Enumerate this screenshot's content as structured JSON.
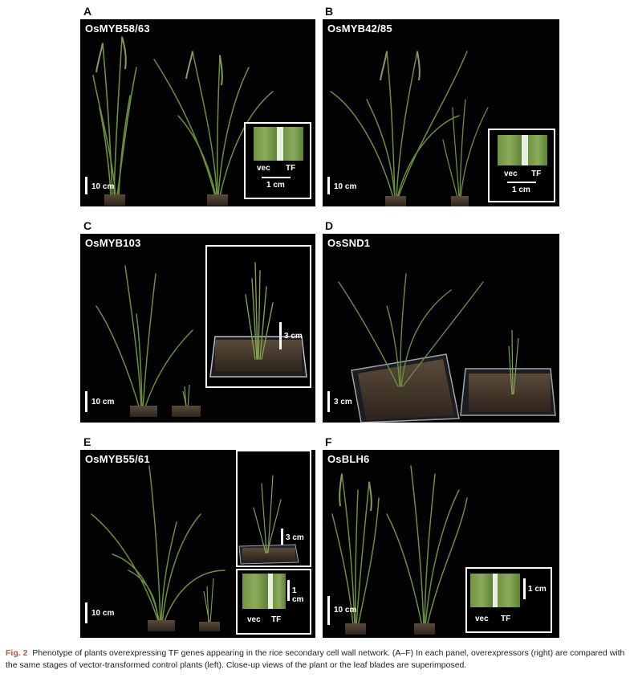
{
  "panels": {
    "A": {
      "letter": "A",
      "gene": "OsMYB58/63",
      "scale": "10 cm",
      "inset": {
        "vec": "vec",
        "tf": "TF",
        "scale": "1 cm"
      }
    },
    "B": {
      "letter": "B",
      "gene": "OsMYB42/85",
      "scale": "10 cm",
      "inset": {
        "vec": "vec",
        "tf": "TF",
        "scale": "1 cm"
      }
    },
    "C": {
      "letter": "C",
      "gene": "OsMYB103",
      "scale": "10 cm",
      "inset": {
        "scale": "3 cm"
      }
    },
    "D": {
      "letter": "D",
      "gene": "OsSND1",
      "scale": "3 cm"
    },
    "E": {
      "letter": "E",
      "gene": "OsMYB55/61",
      "scale": "10 cm",
      "inset_plant": {
        "scale": "3 cm"
      },
      "inset_leaf": {
        "vec": "vec",
        "tf": "TF",
        "scale": "1 cm"
      }
    },
    "F": {
      "letter": "F",
      "gene": "OsBLH6",
      "scale": "10 cm",
      "inset": {
        "vec": "vec",
        "tf": "TF",
        "scale": "1 cm"
      }
    }
  },
  "caption": {
    "label": "Fig. 2",
    "text": "Phenotype of plants overexpressing TF genes appearing in the rice secondary cell wall network. (A–F) In each panel, overexpressors (right) are compared with the same stages of vector-transformed control plants (left). Close-up views of the plant or the leaf blades are superimposed."
  },
  "colors": {
    "background": "#020202",
    "leaf": "#5f8a3a",
    "leaf_light": "#9bb86a",
    "soil": "#4a3d30",
    "caption_label": "#c0504d"
  }
}
